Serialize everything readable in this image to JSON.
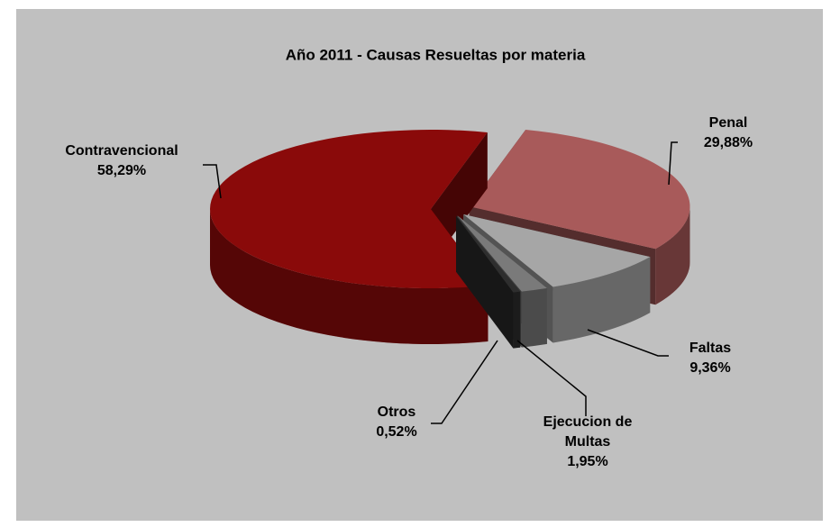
{
  "chart_data": {
    "type": "pie",
    "title": "Año 2011 - Causas Resueltas por materia",
    "categories": [
      "Contravencional",
      "Penal",
      "Faltas",
      "Ejecucion de Multas",
      "Otros"
    ],
    "values": [
      58.29,
      29.88,
      9.36,
      1.95,
      0.52
    ],
    "value_labels": [
      "58,29%",
      "29,88%",
      "9,36%",
      "1,95%",
      "0,52%"
    ],
    "colors": [
      "#8a0a0a",
      "#a85a5a",
      "#a6a6a6",
      "#7a7a7a",
      "#2e2e2e"
    ]
  }
}
